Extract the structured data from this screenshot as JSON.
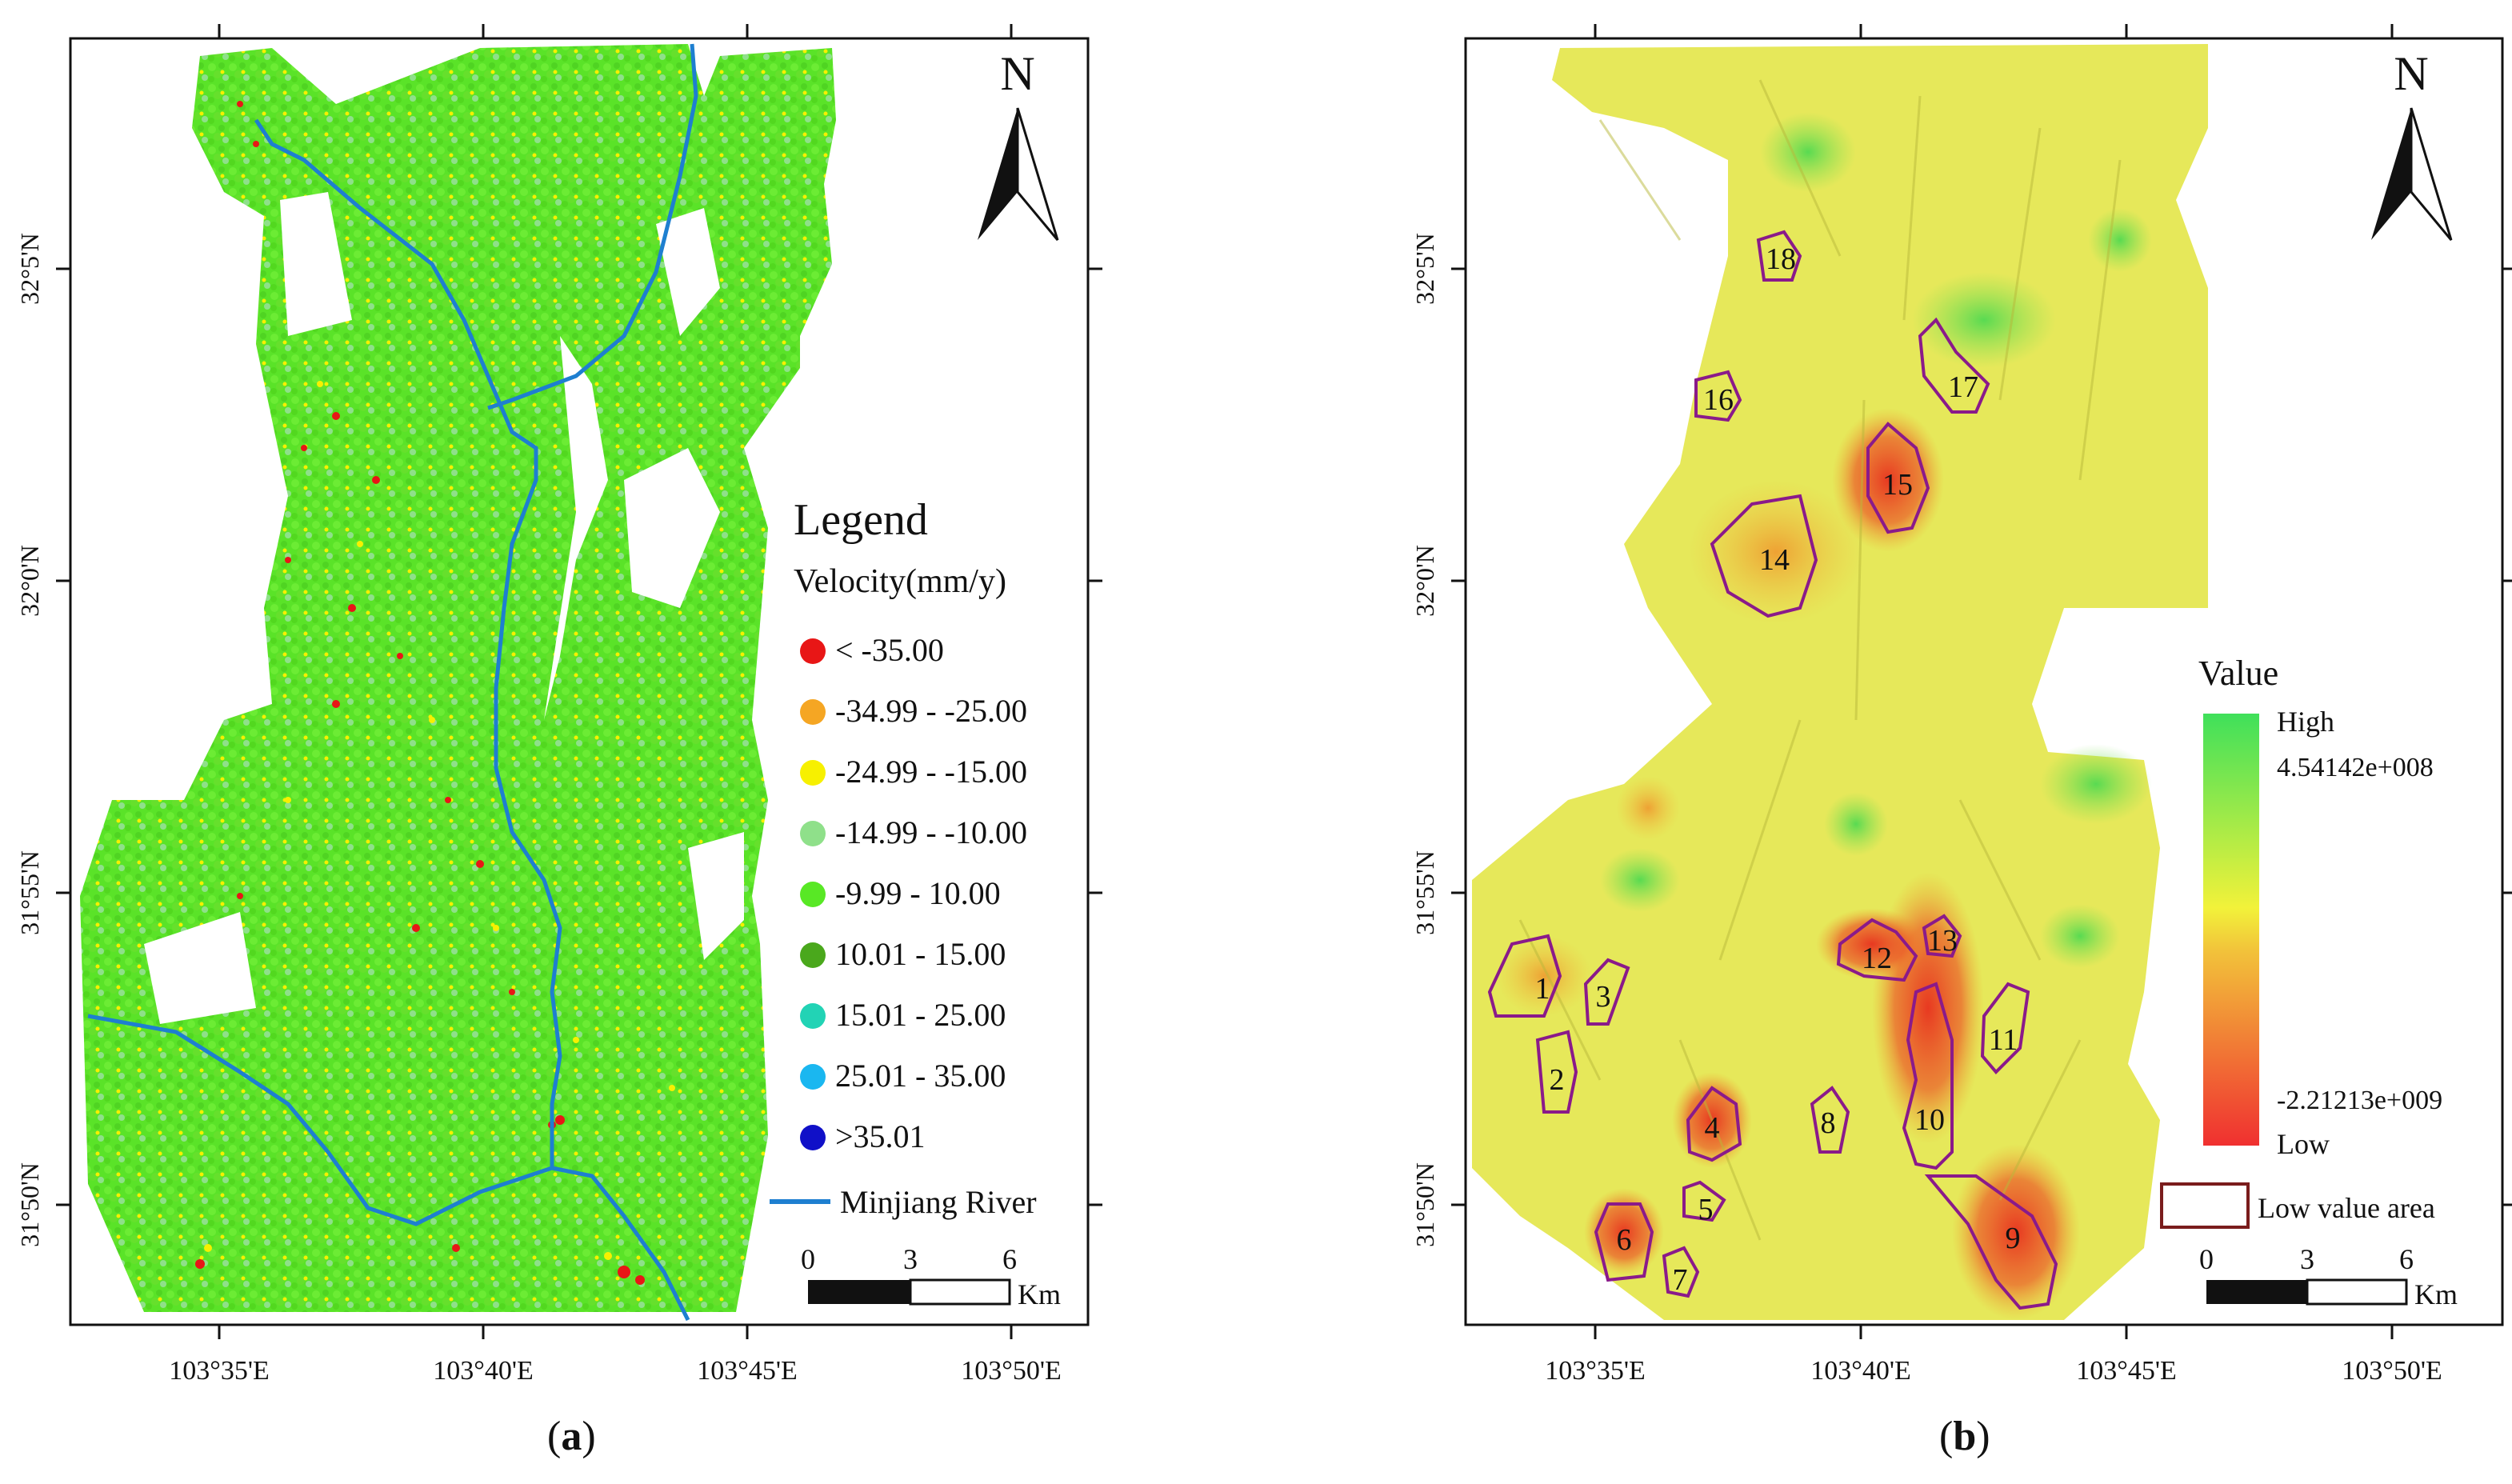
{
  "panels": [
    {
      "id": "a",
      "label": "a",
      "x_ticks": [
        "103°35'E",
        "103°40'E",
        "103°45'E",
        "103°50'E"
      ],
      "y_ticks": [
        "32°5'N",
        "32°0'N",
        "31°55'N",
        "31°50'N"
      ],
      "north_label": "N",
      "legend": {
        "title": "Legend",
        "subtitle": "Velocity(mm/y)",
        "items": [
          {
            "label": "< -35.00",
            "color": "#e81616"
          },
          {
            "label": "-34.99 - -25.00",
            "color": "#f5a623"
          },
          {
            "label": "-24.99 - -15.00",
            "color": "#f7f000"
          },
          {
            "label": "-14.99 - -10.00",
            "color": "#8fe08a"
          },
          {
            "label": "-9.99 - 10.00",
            "color": "#58e825"
          },
          {
            "label": "10.01 - 15.00",
            "color": "#4aa81c"
          },
          {
            "label": "15.01 - 25.00",
            "color": "#22d3b5"
          },
          {
            "label": "25.01 - 35.00",
            "color": "#1ab7f0"
          },
          {
            "label": ">35.01",
            "color": "#1010c8"
          }
        ],
        "river_label": "Minjiang River",
        "river_color": "#1e7fd0"
      },
      "scalebar": {
        "ticks": [
          "0",
          "3",
          "6"
        ],
        "unit": "Km"
      }
    },
    {
      "id": "b",
      "label": "b",
      "x_ticks": [
        "103°35'E",
        "103°40'E",
        "103°45'E",
        "103°50'E"
      ],
      "y_ticks": [
        "32°5'N",
        "32°0'N",
        "31°55'N",
        "31°50'N"
      ],
      "north_label": "N",
      "value_legend": {
        "title": "Value",
        "high_label": "High",
        "high_value": "4.54142e+008",
        "low_value": "-2.21213e+009",
        "low_label": "Low",
        "area_label": "Low value area",
        "area_color": "#7a1c1c",
        "high_color": "#3fe05a",
        "mid_color": "#f2f23a",
        "low_color": "#f03030"
      },
      "scalebar": {
        "ticks": [
          "0",
          "3",
          "6"
        ],
        "unit": "Km"
      },
      "areas": [
        "1",
        "2",
        "3",
        "4",
        "5",
        "6",
        "7",
        "8",
        "9",
        "10",
        "11",
        "12",
        "13",
        "14",
        "15",
        "16",
        "17",
        "18"
      ]
    }
  ]
}
